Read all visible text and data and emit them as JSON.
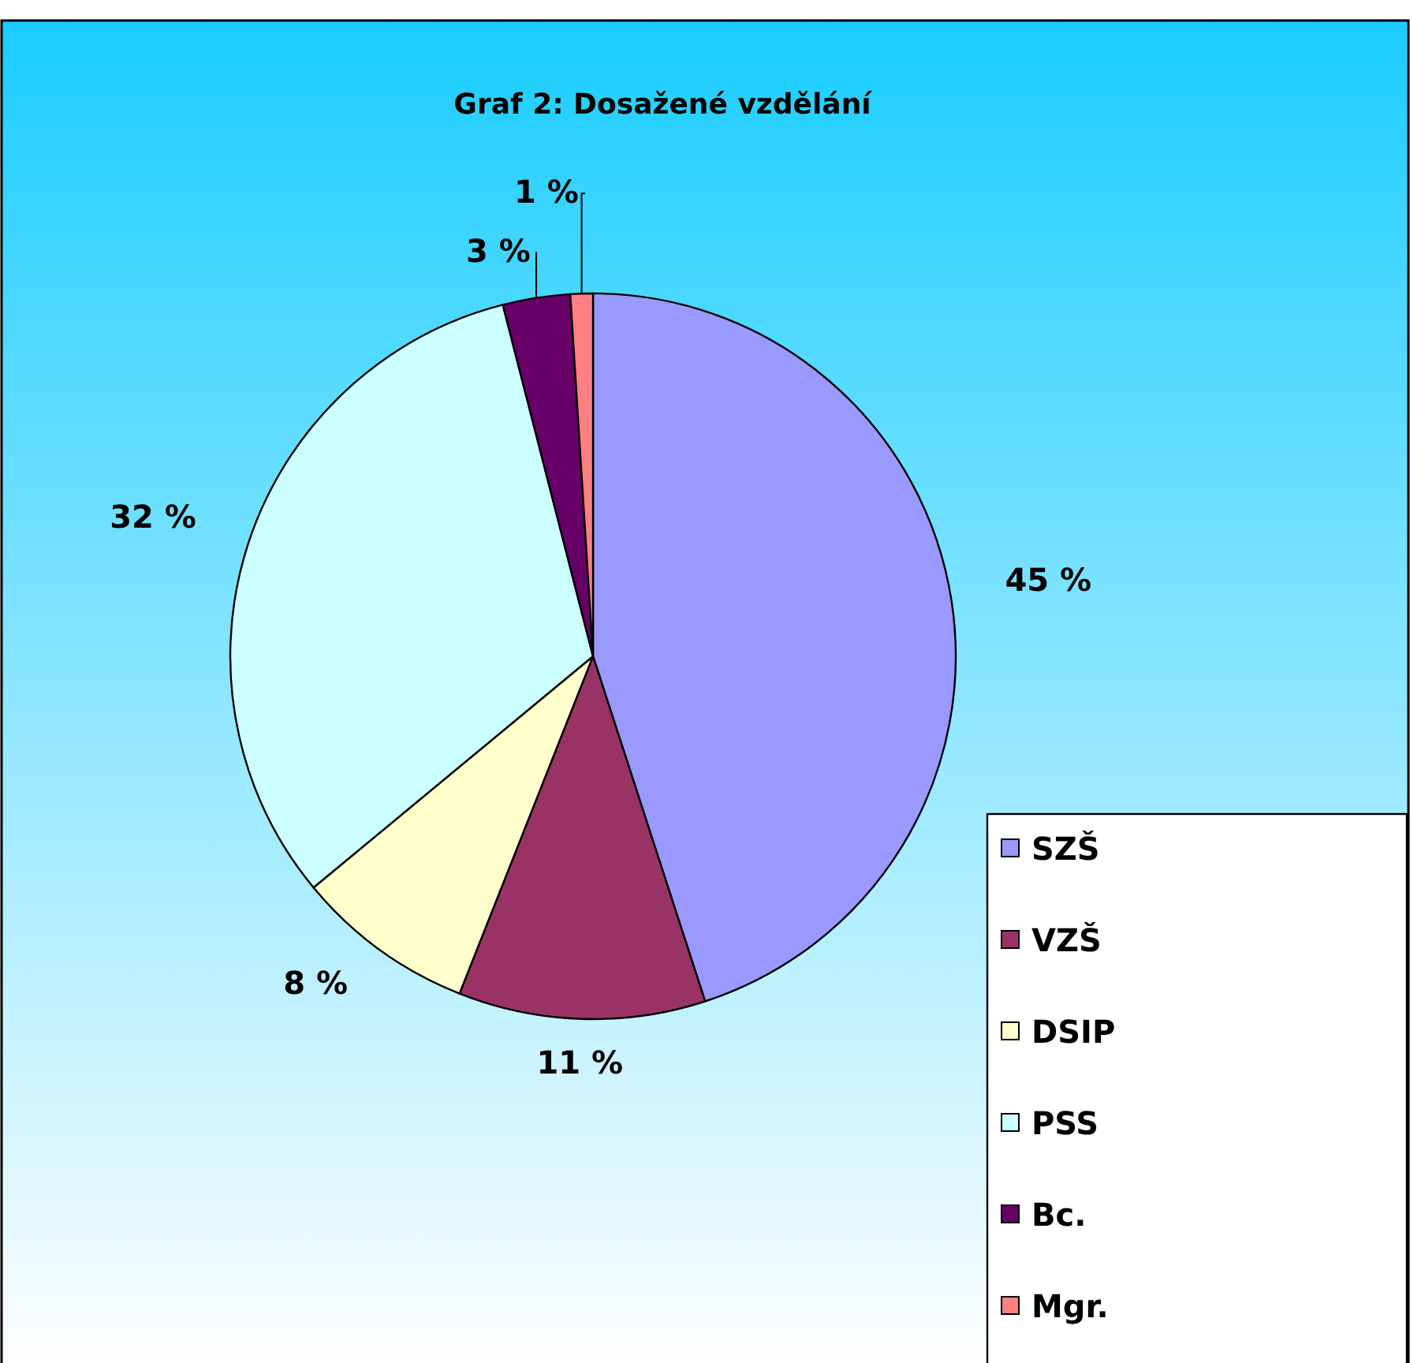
{
  "chart_data": {
    "type": "pie",
    "title": "Graf 2: Dosažené vzdělání",
    "categories": [
      "SZŠ",
      "VZŠ",
      "DSIP",
      "PSS",
      "Bc.",
      "Mgr."
    ],
    "values": [
      45,
      11,
      8,
      32,
      3,
      1
    ],
    "colors": [
      "#9999ff",
      "#993366",
      "#ffffcc",
      "#ccffff",
      "#660066",
      "#ff8080"
    ],
    "value_labels": [
      "45 %",
      "11 %",
      "8 %",
      "32 %",
      "3 %",
      "1 %"
    ],
    "legend": "bottom right"
  }
}
